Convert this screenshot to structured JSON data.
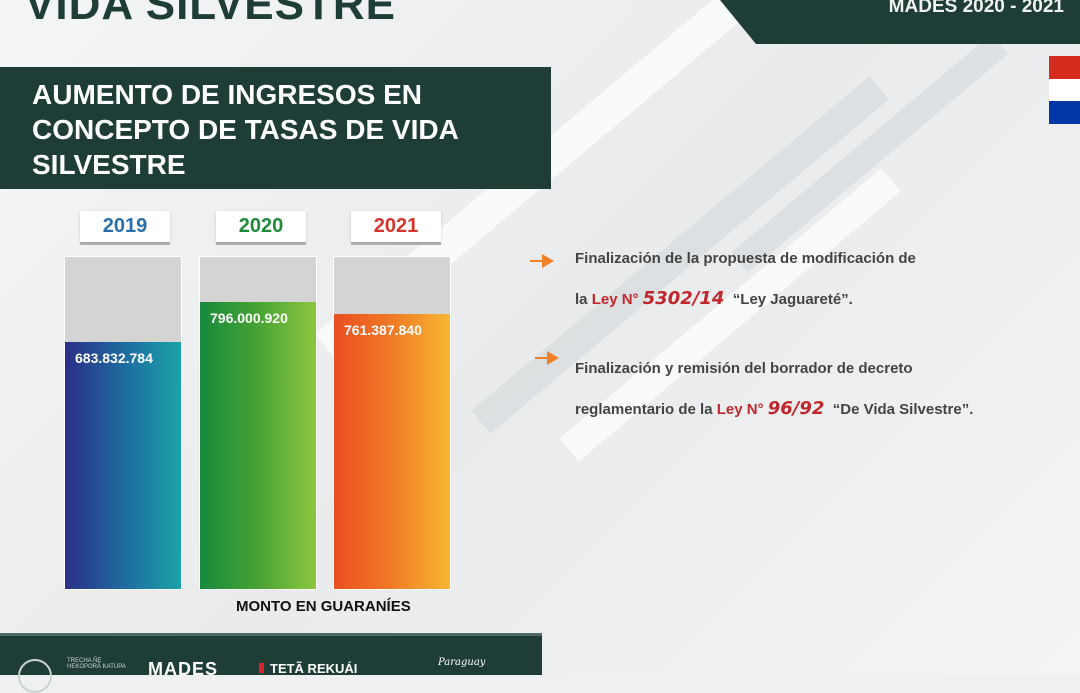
{
  "header": {
    "title": "VIDA SILVESTRE",
    "tag": "MADES 2020 - 2021"
  },
  "heading": "AUMENTO DE INGRESOS EN CONCEPTO DE TASAS DE VIDA SILVESTRE",
  "colors": {
    "dark_green": "#1e3d37",
    "year_2019": "#2a70a8",
    "year_2020": "#1e8a3a",
    "year_2021": "#d4352a",
    "law_red": "#c0272d"
  },
  "chart_data": {
    "type": "bar",
    "categories": [
      "2019",
      "2020",
      "2021"
    ],
    "values": [
      683832784,
      796000920,
      761387840
    ],
    "value_labels": [
      "683.832.784",
      "796.000.920",
      "761.387.840"
    ],
    "xlabel": "MONTO EN GUARANÍES",
    "ylim": [
      0,
      920000000
    ]
  },
  "points": [
    {
      "line1": "Finalización de la propuesta de modificación de",
      "pre": "la ",
      "law": "Ley N°",
      "law_num": "5302/14",
      "post": "“Ley Jaguareté”."
    },
    {
      "line1": "Finalización y remisión del borrador de decreto",
      "pre": "reglamentario de la ",
      "law": "Ley N°",
      "law_num": "96/92",
      "post": "“De Vida Silvestre”."
    }
  ],
  "footer": {
    "small_text": "TRECHA ÑE HEKOPORÃ KATUPA",
    "mades": "MADES",
    "teta": "TETÃ REKUÁI",
    "paraguay": "Paraguay"
  }
}
